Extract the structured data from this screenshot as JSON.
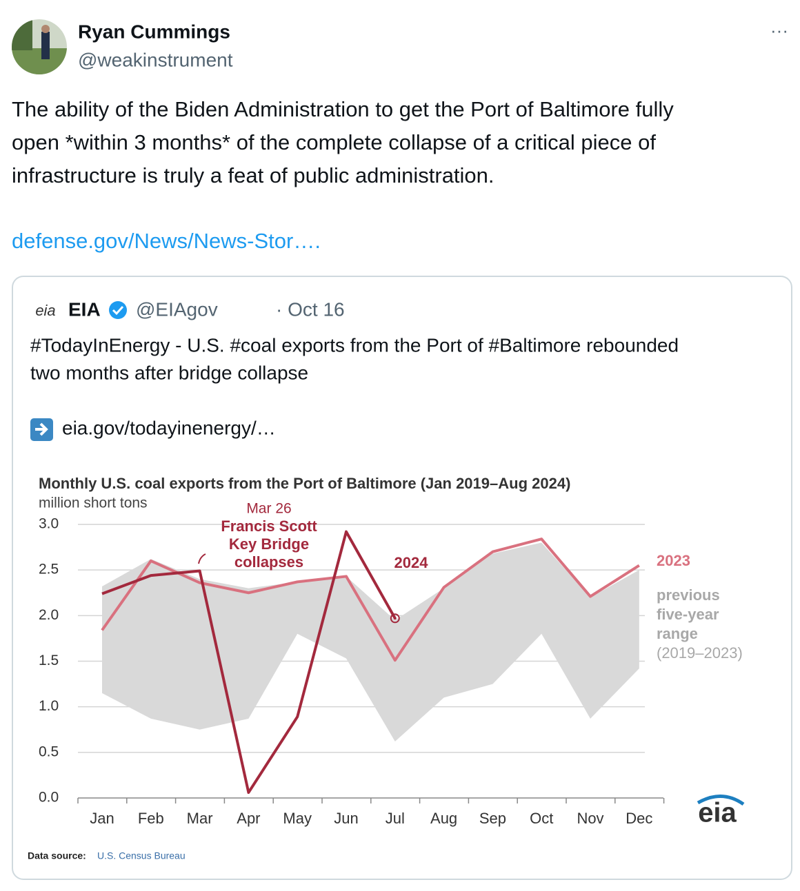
{
  "tweet": {
    "name": "Ryan Cummings",
    "handle": "@weakinstrument",
    "more": "···",
    "text_lines": [
      "The ability of the Biden Administration to get the Port of Baltimore fully",
      "open *within 3 months* of the complete collapse of a critical piece of",
      "infrastructure is truly a feat of public administration."
    ],
    "link": "defense.gov/News/News-Stor….",
    "quote": {
      "logo": "eia",
      "name": "EIA",
      "handle": "@EIAgov",
      "date": "· Oct 16",
      "text_lines": [
        "#TodayInEnergy - U.S. #coal exports from the Port of #Baltimore rebounded",
        "two months after bridge collapse"
      ],
      "link": "eia.gov/todayinenergy/…"
    }
  },
  "chart_data": {
    "type": "line",
    "title": "Monthly U.S. coal exports from the Port of Baltimore (Jan 2019–Aug 2024)",
    "ylabel": "million short tons",
    "categories": [
      "Jan",
      "Feb",
      "Mar",
      "Apr",
      "May",
      "Jun",
      "Jul",
      "Aug",
      "Sep",
      "Oct",
      "Nov",
      "Dec"
    ],
    "ylim": [
      0,
      3
    ],
    "yticks": [
      {
        "value": 0,
        "label": "0.0"
      },
      {
        "value": 0.5,
        "label": "0.5"
      },
      {
        "value": 1,
        "label": "1.0"
      },
      {
        "value": 1.5,
        "label": "1.5"
      },
      {
        "value": 2,
        "label": "2.0"
      },
      {
        "value": 2.5,
        "label": "2.5"
      },
      {
        "value": 3,
        "label": "3.0"
      }
    ],
    "grid": true,
    "range": {
      "label_lines": [
        "previous",
        "five-year",
        "range",
        "(2019–2023)"
      ],
      "color": "#d9d9d9",
      "low": [
        1.15,
        0.87,
        0.75,
        0.87,
        1.8,
        1.53,
        0.62,
        1.1,
        1.25,
        1.8,
        0.87,
        1.42
      ],
      "high": [
        2.32,
        2.62,
        2.4,
        2.3,
        2.37,
        2.43,
        1.95,
        2.3,
        2.68,
        2.8,
        2.2,
        2.5
      ]
    },
    "series": [
      {
        "name": "2023",
        "color": "#d9717f",
        "values": [
          1.84,
          2.6,
          2.36,
          2.25,
          2.37,
          2.43,
          1.51,
          2.31,
          2.7,
          2.84,
          2.21,
          2.55
        ]
      },
      {
        "name": "2024",
        "color": "#a3293d",
        "values": [
          2.24,
          2.44,
          2.49,
          0.06,
          0.89,
          2.92,
          1.97,
          null,
          null,
          null,
          null,
          null
        ]
      }
    ],
    "annotation": {
      "date": "Mar 26",
      "lines": [
        "Francis Scott",
        "Key Bridge",
        "collapses"
      ]
    },
    "source_label": "Data source:",
    "source": "U.S. Census Bureau",
    "logo": "eia"
  }
}
